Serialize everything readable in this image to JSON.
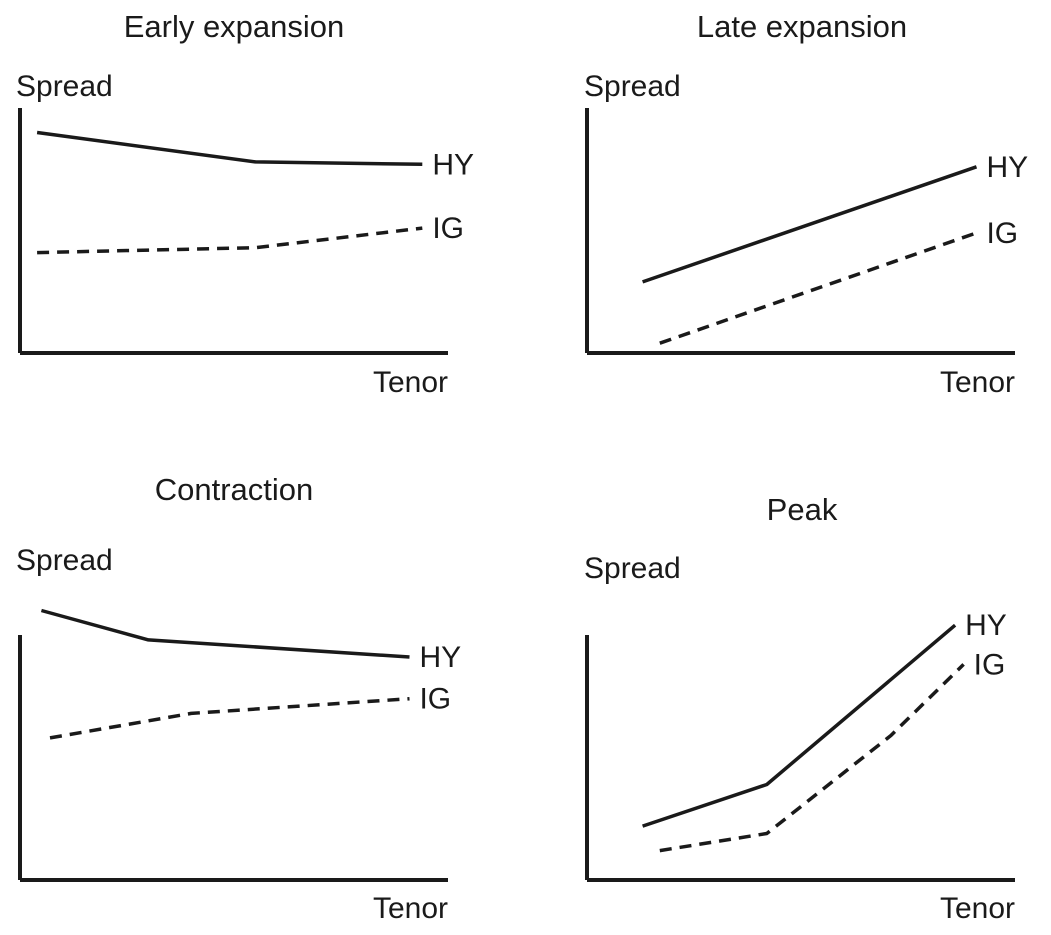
{
  "chart_data": [
    {
      "type": "line",
      "title": "Early expansion",
      "ylabel": "Spread",
      "xlabel": "Tenor",
      "series": [
        {
          "name": "HY",
          "style": "solid",
          "x": [
            0.04,
            0.55,
            0.94
          ],
          "y": [
            0.9,
            0.78,
            0.77
          ]
        },
        {
          "name": "IG",
          "style": "dashed",
          "x": [
            0.04,
            0.55,
            0.94
          ],
          "y": [
            0.41,
            0.43,
            0.51
          ]
        }
      ]
    },
    {
      "type": "line",
      "title": "Late expansion",
      "ylabel": "Spread",
      "xlabel": "Tenor",
      "series": [
        {
          "name": "HY",
          "style": "solid",
          "x": [
            0.13,
            0.91
          ],
          "y": [
            0.29,
            0.76
          ]
        },
        {
          "name": "IG",
          "style": "dashed",
          "x": [
            0.17,
            0.91
          ],
          "y": [
            0.04,
            0.49
          ]
        }
      ]
    },
    {
      "type": "line",
      "title": "Contraction",
      "ylabel": "Spread",
      "xlabel": "Tenor",
      "series": [
        {
          "name": "HY",
          "style": "solid",
          "x": [
            0.05,
            0.3,
            0.91
          ],
          "y": [
            1.1,
            0.98,
            0.91
          ]
        },
        {
          "name": "IG",
          "style": "dashed",
          "x": [
            0.07,
            0.4,
            0.91
          ],
          "y": [
            0.58,
            0.68,
            0.74
          ]
        }
      ]
    },
    {
      "type": "line",
      "title": "Peak",
      "ylabel": "Spread",
      "xlabel": "Tenor",
      "series": [
        {
          "name": "HY",
          "style": "solid",
          "x": [
            0.13,
            0.42,
            0.86
          ],
          "y": [
            0.22,
            0.39,
            1.04
          ]
        },
        {
          "name": "IG",
          "style": "dashed",
          "x": [
            0.17,
            0.42,
            0.71,
            0.88
          ],
          "y": [
            0.12,
            0.19,
            0.59,
            0.88
          ]
        }
      ]
    }
  ]
}
